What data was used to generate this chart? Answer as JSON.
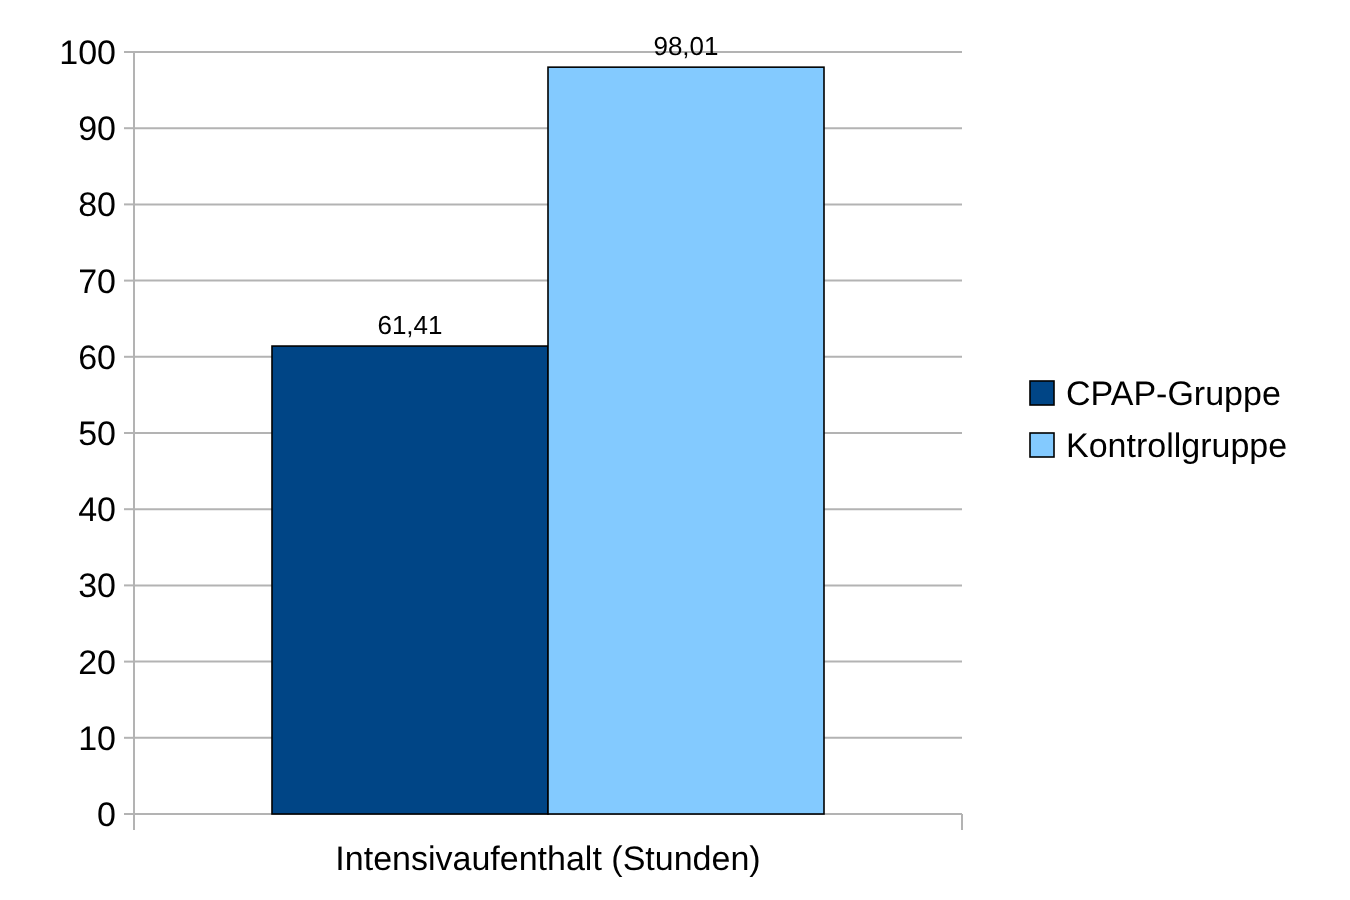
{
  "chart_data": {
    "type": "bar",
    "categories": [
      "Intensivaufenthalt (Stunden)"
    ],
    "series": [
      {
        "name": "CPAP-Gruppe",
        "color": "#004586",
        "values": [
          61.41
        ],
        "value_labels": [
          "61,41"
        ]
      },
      {
        "name": "Kontrollgruppe",
        "color": "#83caff",
        "values": [
          98.01
        ],
        "value_labels": [
          "98,01"
        ]
      }
    ],
    "ylim": [
      0,
      100
    ],
    "yticks": [
      0,
      10,
      20,
      30,
      40,
      50,
      60,
      70,
      80,
      90,
      100
    ],
    "grid": "y",
    "legend": "right"
  }
}
